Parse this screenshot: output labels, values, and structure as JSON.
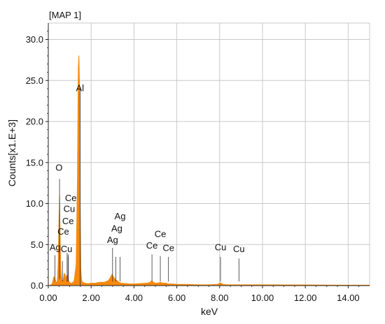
{
  "chart_data": {
    "type": "area",
    "title": "[MAP 1]",
    "xlabel": "keV",
    "ylabel": "Counts[x1.E+3]",
    "xlim": [
      0,
      15
    ],
    "ylim": [
      0,
      32
    ],
    "grid": true,
    "x_ticks": [
      "0.00",
      "2.00",
      "4.00",
      "6.00",
      "8.00",
      "10.00",
      "12.00",
      "14.00"
    ],
    "x_tick_values": [
      0,
      2,
      4,
      6,
      8,
      10,
      12,
      14
    ],
    "y_ticks": [
      "0.0",
      "5.0",
      "10.0",
      "15.0",
      "20.0",
      "25.0",
      "30.0"
    ],
    "y_tick_values": [
      0,
      5,
      10,
      15,
      20,
      25,
      30
    ],
    "fill_color": "#f7890e",
    "series": [
      {
        "x": [
          0.0,
          0.1,
          0.18,
          0.22,
          0.26,
          0.3,
          0.34,
          0.38,
          0.42,
          0.46,
          0.5,
          0.525,
          0.55,
          0.58,
          0.62,
          0.66,
          0.7,
          0.74,
          0.78,
          0.82,
          0.86,
          0.9,
          0.93,
          0.96,
          1.0,
          1.05,
          1.1,
          1.2,
          1.3,
          1.36,
          1.4,
          1.43,
          1.46,
          1.49,
          1.52,
          1.56,
          1.6,
          1.7,
          1.8,
          1.9,
          2.0,
          2.2,
          2.4,
          2.6,
          2.8,
          2.9,
          2.98,
          3.05,
          3.1,
          3.15,
          3.22,
          3.3,
          3.4,
          3.6,
          3.8,
          4.0,
          4.3,
          4.6,
          4.75,
          4.84,
          4.9,
          5.0,
          5.1,
          5.23,
          5.35,
          5.5,
          5.6,
          5.8,
          6.0,
          6.5,
          7.0,
          7.5,
          7.9,
          8.04,
          8.15,
          8.4,
          8.9,
          9.5,
          10.0,
          10.5,
          11.0,
          12.0,
          13.0,
          14.0,
          15.0
        ],
        "y": [
          0.0,
          0.05,
          0.2,
          0.6,
          1.1,
          0.9,
          0.5,
          0.4,
          0.5,
          2.5,
          8.0,
          11.0,
          6.0,
          2.0,
          0.7,
          0.5,
          0.7,
          1.5,
          1.4,
          0.8,
          1.2,
          1.3,
          0.8,
          0.5,
          0.4,
          0.3,
          0.3,
          0.5,
          2.5,
          13.0,
          26.5,
          28.0,
          24.0,
          9.0,
          2.0,
          0.6,
          0.4,
          0.3,
          0.25,
          0.25,
          0.3,
          0.3,
          0.4,
          0.4,
          0.6,
          1.0,
          1.4,
          1.0,
          0.9,
          0.7,
          0.6,
          0.4,
          0.3,
          0.25,
          0.2,
          0.2,
          0.25,
          0.3,
          0.4,
          0.6,
          0.4,
          0.3,
          0.3,
          0.4,
          0.3,
          0.3,
          0.2,
          0.2,
          0.15,
          0.15,
          0.1,
          0.1,
          0.15,
          0.35,
          0.15,
          0.1,
          0.1,
          0.1,
          0.1,
          0.1,
          0.08,
          0.08,
          0.06,
          0.05,
          0.05
        ]
      }
    ],
    "annotations": [
      {
        "label": "O",
        "line_x": 0.525,
        "line_top": 13.0,
        "line_bottom": 0.8,
        "label_x": 0.5,
        "label_y": 14.0
      },
      {
        "label": "Al",
        "line_x": 1.486,
        "line_top": 24.0,
        "line_bottom": 0.0,
        "label_x": 1.48,
        "label_y": 23.7
      },
      {
        "label": "Ce",
        "line_x": 0.88,
        "line_top": 4.0,
        "line_bottom": 0.5,
        "label_x": 1.05,
        "label_y": 10.3
      },
      {
        "label": "Cu",
        "line_x": 0.93,
        "line_top": 3.8,
        "line_bottom": 0.5,
        "label_x": 0.98,
        "label_y": 9.0
      },
      {
        "label": "Ce",
        "line_x": 0.88,
        "line_top": 3.5,
        "line_bottom": 0.5,
        "label_x": 0.92,
        "label_y": 7.5
      },
      {
        "label": "Ce",
        "line_x": 0.66,
        "line_top": 3.0,
        "line_bottom": 0.5,
        "label_x": 0.7,
        "label_y": 6.2
      },
      {
        "label": "Ag",
        "line_x": 0.31,
        "line_top": 3.7,
        "line_bottom": 0.5,
        "label_x": 0.32,
        "label_y": 4.3
      },
      {
        "label": "Cu",
        "line_x": 0.93,
        "line_top": 3.6,
        "line_bottom": 0.5,
        "label_x": 0.85,
        "label_y": 4.1
      },
      {
        "label": "Ag",
        "line_x": 3.15,
        "line_top": 3.5,
        "line_bottom": 0.5,
        "label_x": 3.35,
        "label_y": 8.1
      },
      {
        "label": "Ag",
        "line_x": 3.0,
        "line_top": 4.6,
        "line_bottom": 0.5,
        "label_x": 3.2,
        "label_y": 6.6
      },
      {
        "label": "Ag",
        "line_x": 3.35,
        "line_top": 3.5,
        "line_bottom": 0.5,
        "label_x": 3.0,
        "label_y": 5.2
      },
      {
        "label": "Ce",
        "line_x": 4.84,
        "line_top": 3.8,
        "line_bottom": 0.5,
        "label_x": 4.84,
        "label_y": 4.5
      },
      {
        "label": "Ce",
        "line_x": 5.23,
        "line_top": 3.6,
        "line_bottom": 0.5,
        "label_x": 5.23,
        "label_y": 5.9
      },
      {
        "label": "Ce",
        "line_x": 5.61,
        "line_top": 3.5,
        "line_bottom": 0.5,
        "label_x": 5.61,
        "label_y": 4.2
      },
      {
        "label": "Cu",
        "line_x": 8.04,
        "line_top": 3.5,
        "line_bottom": 0.5,
        "label_x": 8.04,
        "label_y": 4.3
      },
      {
        "label": "Cu",
        "line_x": 8.9,
        "line_top": 3.3,
        "line_bottom": 0.5,
        "label_x": 8.9,
        "label_y": 4.1
      }
    ]
  }
}
